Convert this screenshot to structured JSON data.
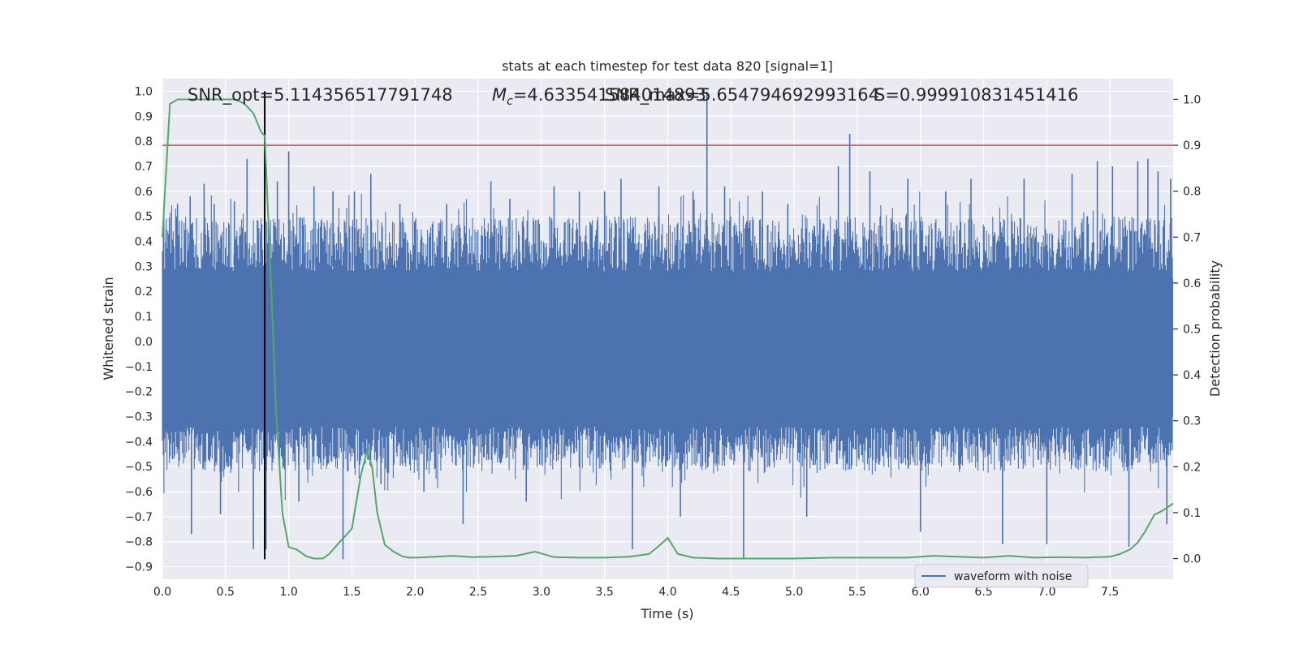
{
  "chart_data": {
    "type": "line",
    "title": "stats at each timestep for test data 820 [signal=1]",
    "xlabel": "Time (s)",
    "ylabel": "Whitened strain",
    "y2label": "Detection probability",
    "xlim": [
      0.0,
      8.0
    ],
    "ylim": [
      -0.95,
      1.05
    ],
    "y2lim": [
      -0.045,
      1.045
    ],
    "xticks": [
      "0.0",
      "0.5",
      "1.0",
      "1.5",
      "2.0",
      "2.5",
      "3.0",
      "3.5",
      "4.0",
      "4.5",
      "5.0",
      "5.5",
      "6.0",
      "6.5",
      "7.0",
      "7.5"
    ],
    "yticks": [
      "1.0",
      "0.9",
      "0.8",
      "0.7",
      "0.6",
      "0.5",
      "0.4",
      "0.3",
      "0.2",
      "0.1",
      "0.0",
      "−0.1",
      "−0.2",
      "−0.3",
      "−0.4",
      "−0.5",
      "−0.6",
      "−0.7",
      "−0.8",
      "−0.9"
    ],
    "y2ticks": [
      "1.0",
      "0.9",
      "0.8",
      "0.7",
      "0.6",
      "0.5",
      "0.4",
      "0.3",
      "0.2",
      "0.1",
      "0.0"
    ],
    "grid": true,
    "legend_position": "lower-right",
    "annotations": {
      "snr_opt": "SNR_opt=5.114356517791748",
      "mc": "=4.633541584014893",
      "snr_max": "SNR_max=5.654794692993164",
      "s": "S=0.999910831451416"
    },
    "threshold_line": {
      "y2": 0.9,
      "color": "#c44e52"
    },
    "peak_marker": {
      "x": 0.81,
      "y_top": 1.0,
      "y_bottom": -0.87
    },
    "waveform": {
      "name": "waveform with noise",
      "color": "#4c72b0",
      "core_band": [
        -0.3,
        0.25
      ],
      "spikes": [
        {
          "x": 0.03,
          "y": 0.45
        },
        {
          "x": 0.08,
          "y": -0.47
        },
        {
          "x": 0.12,
          "y": 0.55
        },
        {
          "x": 0.22,
          "y": 0.58
        },
        {
          "x": 0.23,
          "y": -0.77
        },
        {
          "x": 0.33,
          "y": 0.63
        },
        {
          "x": 0.41,
          "y": 0.55
        },
        {
          "x": 0.46,
          "y": -0.69
        },
        {
          "x": 0.57,
          "y": 0.56
        },
        {
          "x": 0.67,
          "y": 0.73
        },
        {
          "x": 0.72,
          "y": -0.83
        },
        {
          "x": 0.78,
          "y": 0.45
        },
        {
          "x": 0.82,
          "y": -0.83
        },
        {
          "x": 0.91,
          "y": 0.64
        },
        {
          "x": 1.0,
          "y": 0.76
        },
        {
          "x": 1.08,
          "y": -0.64
        },
        {
          "x": 1.2,
          "y": 0.62
        },
        {
          "x": 1.35,
          "y": 0.6
        },
        {
          "x": 1.43,
          "y": -0.87
        },
        {
          "x": 1.52,
          "y": 0.6
        },
        {
          "x": 1.65,
          "y": 0.67
        },
        {
          "x": 1.73,
          "y": -0.57
        },
        {
          "x": 1.88,
          "y": 0.55
        },
        {
          "x": 2.07,
          "y": -0.6
        },
        {
          "x": 2.25,
          "y": 0.55
        },
        {
          "x": 2.38,
          "y": -0.73
        },
        {
          "x": 2.6,
          "y": 0.64
        },
        {
          "x": 2.75,
          "y": 0.57
        },
        {
          "x": 2.88,
          "y": -0.64
        },
        {
          "x": 3.1,
          "y": 0.62
        },
        {
          "x": 3.3,
          "y": 0.6
        },
        {
          "x": 3.5,
          "y": 0.6
        },
        {
          "x": 3.63,
          "y": 0.65
        },
        {
          "x": 3.72,
          "y": -0.83
        },
        {
          "x": 3.93,
          "y": 0.62
        },
        {
          "x": 4.1,
          "y": -0.7
        },
        {
          "x": 4.2,
          "y": 0.6
        },
        {
          "x": 4.31,
          "y": 1.0
        },
        {
          "x": 4.45,
          "y": 0.62
        },
        {
          "x": 4.6,
          "y": -0.87
        },
        {
          "x": 4.75,
          "y": 0.6
        },
        {
          "x": 4.95,
          "y": 0.55
        },
        {
          "x": 5.1,
          "y": -0.7
        },
        {
          "x": 5.35,
          "y": 0.7
        },
        {
          "x": 5.44,
          "y": 0.83
        },
        {
          "x": 5.6,
          "y": 0.68
        },
        {
          "x": 5.9,
          "y": 0.65
        },
        {
          "x": 6.0,
          "y": -0.76
        },
        {
          "x": 6.2,
          "y": 0.6
        },
        {
          "x": 6.4,
          "y": 0.65
        },
        {
          "x": 6.65,
          "y": -0.81
        },
        {
          "x": 6.82,
          "y": 0.65
        },
        {
          "x": 7.0,
          "y": -0.81
        },
        {
          "x": 7.2,
          "y": 0.67
        },
        {
          "x": 7.4,
          "y": 0.72
        },
        {
          "x": 7.52,
          "y": 0.7
        },
        {
          "x": 7.65,
          "y": -0.82
        },
        {
          "x": 7.72,
          "y": 0.72
        },
        {
          "x": 7.8,
          "y": 0.73
        },
        {
          "x": 7.88,
          "y": 0.68
        },
        {
          "x": 7.95,
          "y": -0.73
        },
        {
          "x": 7.98,
          "y": 0.65
        }
      ]
    },
    "detection_probability": {
      "color": "#55a868",
      "x": [
        0.0,
        0.06,
        0.12,
        0.2,
        0.3,
        0.4,
        0.5,
        0.58,
        0.65,
        0.72,
        0.78,
        0.81,
        0.86,
        0.9,
        0.95,
        1.0,
        1.06,
        1.14,
        1.2,
        1.27,
        1.32,
        1.4,
        1.5,
        1.57,
        1.62,
        1.66,
        1.7,
        1.76,
        1.83,
        1.9,
        1.95,
        2.0,
        2.1,
        2.3,
        2.45,
        2.6,
        2.8,
        2.95,
        3.1,
        3.3,
        3.5,
        3.7,
        3.85,
        3.92,
        4.0,
        4.08,
        4.2,
        4.4,
        4.6,
        4.8,
        5.0,
        5.3,
        5.6,
        5.9,
        6.1,
        6.3,
        6.5,
        6.7,
        6.9,
        7.1,
        7.3,
        7.5,
        7.58,
        7.66,
        7.72,
        7.78,
        7.85,
        7.92,
        8.0
      ],
      "y": [
        0.7,
        0.99,
        1.0,
        1.0,
        1.0,
        1.0,
        1.0,
        1.0,
        0.99,
        0.97,
        0.93,
        0.92,
        0.6,
        0.32,
        0.1,
        0.025,
        0.02,
        0.005,
        0.0,
        0.0,
        0.01,
        0.035,
        0.065,
        0.18,
        0.235,
        0.2,
        0.1,
        0.03,
        0.015,
        0.005,
        0.002,
        0.002,
        0.003,
        0.006,
        0.003,
        0.004,
        0.006,
        0.015,
        0.003,
        0.002,
        0.002,
        0.004,
        0.01,
        0.025,
        0.045,
        0.01,
        0.002,
        0.0,
        0.0,
        0.0,
        0.0,
        0.002,
        0.002,
        0.002,
        0.006,
        0.004,
        0.002,
        0.006,
        0.002,
        0.003,
        0.002,
        0.004,
        0.01,
        0.02,
        0.035,
        0.06,
        0.095,
        0.105,
        0.12
      ]
    }
  }
}
